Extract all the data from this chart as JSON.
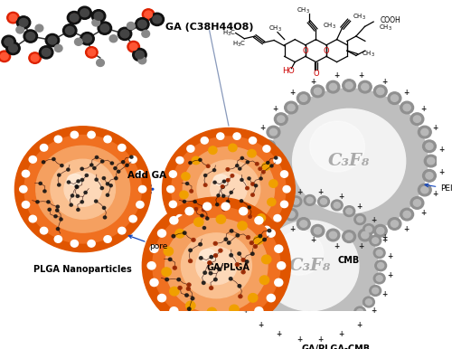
{
  "bg_color": "#ffffff",
  "orange_outer": "#E05500",
  "orange_mid": "#F07020",
  "orange_inner": "#F5A060",
  "orange_core": "#FAC090",
  "orange_center": "#FDD8B8",
  "gray_bubble": "#BEBEBE",
  "gray_bump": "#909090",
  "gray_bump2": "#B8B8B8",
  "white_inner": "#F2F2F2",
  "gold_dot": "#F0A000",
  "white_dot": "#FFFFFF",
  "arrow_color": "#1144BB",
  "plus_color": "#222222",
  "text_c3f8": "#AAAAAA",
  "label_plga": "PLGA Nanoparticles",
  "label_gaplga": "GA/PLGA",
  "label_cmb": "CMB",
  "label_complex": "GA/PLGA-CMB",
  "label_ga": "GA (C38H44O8)",
  "label_pei": "PEI",
  "label_add_ga": "Add GA",
  "label_pore": "pore",
  "label_c3f8": "C₃F₈"
}
